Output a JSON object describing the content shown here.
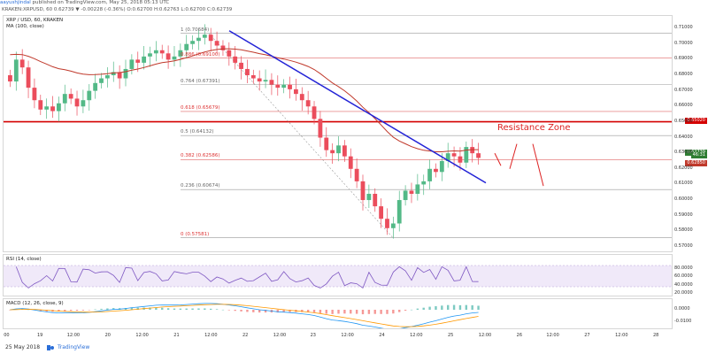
{
  "header": {
    "user": "aayushjindal",
    "publish_text": "published on TradingView.com, May 25, 2018 05:13 UTC",
    "quote_line": "KRAKEN:XRPUSD, 60  0.62739  ▼ -0.00228 (-0.36%)  O:0.62700  H:0.62763  L:0.62700  C:0.62739"
  },
  "legends": {
    "symbol": "XRP / USD, 60, KRAKEN",
    "ma": "MA (100, close)",
    "rsi": "RSI (14, close)",
    "macd": "MACD (12, 26, close, 9)"
  },
  "fib": [
    {
      "label": "1 (0.70684)",
      "price": 0.70684
    },
    {
      "label": "0.886 (0.69100)",
      "price": 0.691
    },
    {
      "label": "0.764 (0.67391)",
      "price": 0.67391
    },
    {
      "label": "0.618 (0.65679)",
      "price": 0.65679
    },
    {
      "label": "0.5 (0.64132)",
      "price": 0.64132
    },
    {
      "label": "0.382 (0.62586)",
      "price": 0.62586
    },
    {
      "label": "0.236 (0.60674)",
      "price": 0.60674
    },
    {
      "label": "0 (0.57581)",
      "price": 0.57581
    }
  ],
  "price_axis": [
    "0.71000",
    "0.70000",
    "0.69000",
    "0.68000",
    "0.67000",
    "0.66000",
    "0.65000",
    "0.64000",
    "0.63000",
    "0.62000",
    "0.61000",
    "0.60000",
    "0.59000",
    "0.58000",
    "0.57000"
  ],
  "price_tags": {
    "resistance": "0.65020",
    "current": "0.62739",
    "countdown": "46:31",
    "ma_value": "0.62850"
  },
  "resistance_label": "Resistance Zone",
  "rsi_axis": [
    "80.0000",
    "60.0000",
    "40.0000",
    "20.0000"
  ],
  "macd_axis": [
    "0.0000",
    "-0.0100"
  ],
  "time_axis": [
    "00",
    "19",
    "12:00",
    "20",
    "12:00",
    "21",
    "12:00",
    "22",
    "12:00",
    "23",
    "12:00",
    "24",
    "12:00",
    "25",
    "12:00",
    "26",
    "12:00",
    "27",
    "12:00",
    "28"
  ],
  "footer": {
    "date": "25 May 2018",
    "brand": "TradingView"
  },
  "colors": {
    "up": "#53b987",
    "down": "#eb4d5c",
    "ma": "#c0392b",
    "trend": "#2323d6",
    "resistance": "#d40000",
    "fib": "#888888",
    "rsi": "#7e57c2"
  },
  "chart_data": {
    "type": "candlestick",
    "symbol": "XRP/USD",
    "timeframe": "60",
    "ylim": [
      0.566,
      0.718
    ],
    "close_series_approx": [
      0.676,
      0.69,
      0.685,
      0.672,
      0.664,
      0.658,
      0.66,
      0.657,
      0.662,
      0.668,
      0.665,
      0.66,
      0.664,
      0.67,
      0.675,
      0.678,
      0.68,
      0.682,
      0.678,
      0.684,
      0.69,
      0.688,
      0.692,
      0.694,
      0.696,
      0.694,
      0.69,
      0.692,
      0.696,
      0.7,
      0.702,
      0.704,
      0.706,
      0.702,
      0.699,
      0.696,
      0.692,
      0.688,
      0.684,
      0.68,
      0.678,
      0.676,
      0.677,
      0.674,
      0.672,
      0.674,
      0.671,
      0.668,
      0.664,
      0.66,
      0.652,
      0.64,
      0.632,
      0.63,
      0.635,
      0.628,
      0.62,
      0.612,
      0.6,
      0.604,
      0.596,
      0.588,
      0.582,
      0.585,
      0.6,
      0.606,
      0.604,
      0.61,
      0.612,
      0.62,
      0.618,
      0.625,
      0.63,
      0.628,
      0.624,
      0.634,
      0.63,
      0.627
    ],
    "resistance_level": 0.6502,
    "current_price": 0.62739
  }
}
